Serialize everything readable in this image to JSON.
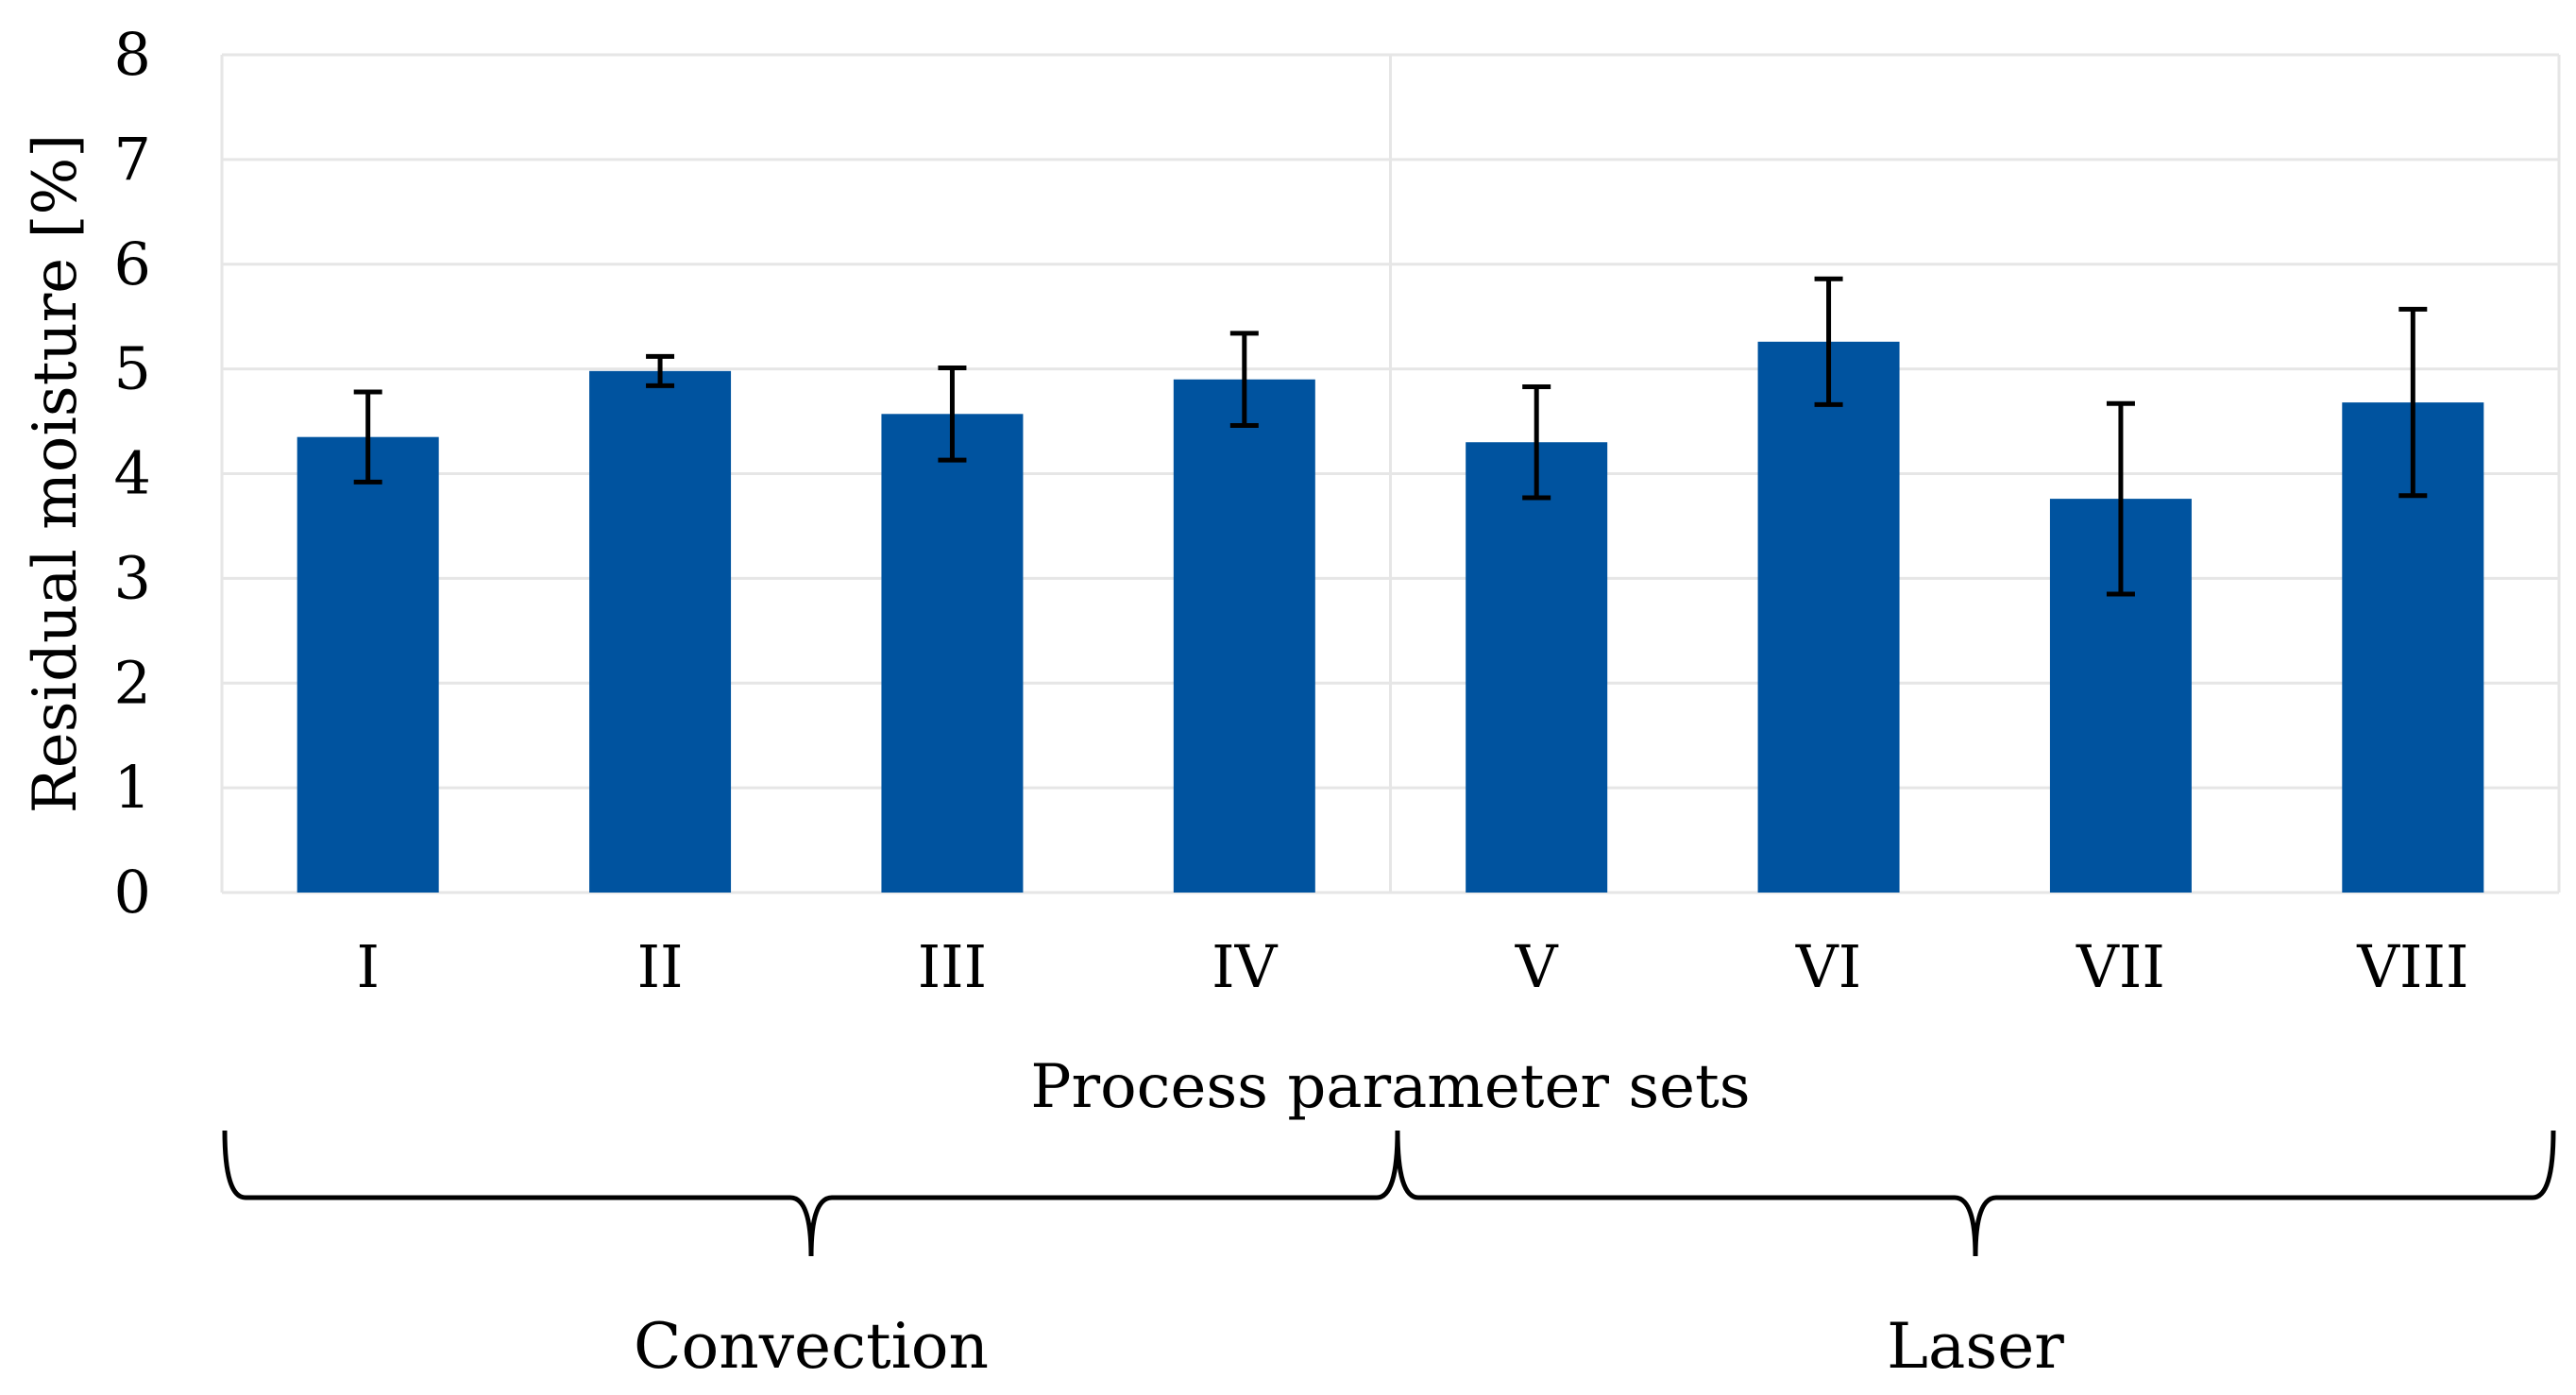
{
  "chart_data": {
    "type": "bar",
    "categories": [
      "I",
      "II",
      "III",
      "IV",
      "V",
      "VI",
      "VII",
      "VIII"
    ],
    "values": [
      4.35,
      4.98,
      4.57,
      4.9,
      4.3,
      5.26,
      3.76,
      4.68
    ],
    "errors": [
      0.43,
      0.14,
      0.44,
      0.44,
      0.53,
      0.6,
      0.91,
      0.89
    ],
    "title": "",
    "xlabel": "Process parameter sets",
    "ylabel": "Residual moisture [%]",
    "ylim": [
      0,
      8
    ],
    "yticks": [
      "0",
      "1",
      "2",
      "3",
      "4",
      "5",
      "6",
      "7",
      "8"
    ],
    "grid": true,
    "bar_color": "#00539F",
    "groups": [
      {
        "label": "Convection",
        "categories": [
          "I",
          "II",
          "III",
          "IV"
        ]
      },
      {
        "label": "Laser",
        "categories": [
          "V",
          "VI",
          "VII",
          "VIII"
        ]
      }
    ]
  }
}
